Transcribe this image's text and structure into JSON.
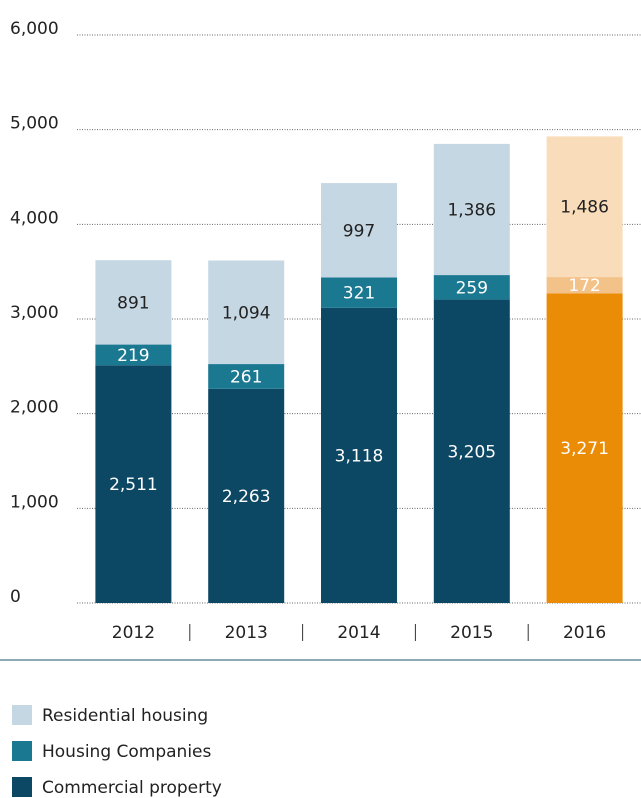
{
  "chart_data": {
    "type": "stacked-bar",
    "categories": [
      "2012",
      "2013",
      "2014",
      "2015",
      "2016"
    ],
    "series": [
      {
        "name": "Commercial property",
        "color": "#0c4764",
        "point_colors": [
          "#0c4764",
          "#0c4764",
          "#0c4764",
          "#0c4764",
          "#eb8c07"
        ],
        "values": [
          2511,
          2263,
          3118,
          3205,
          3271
        ],
        "value_labels": [
          "2,511",
          "2,263",
          "3,118",
          "3,205",
          "3,271"
        ]
      },
      {
        "name": "Housing Companies",
        "color": "#1a7891",
        "point_colors": [
          "#1a7891",
          "#1a7891",
          "#1a7891",
          "#1a7891",
          "#f3c289"
        ],
        "values": [
          219,
          261,
          321,
          259,
          172
        ]
      },
      {
        "name": "Residential housing",
        "color": "#c6d7e4",
        "point_colors": [
          "#c6d7e4",
          "#c6d7e4",
          "#c6d7e4",
          "#c6d7e4",
          "#f9dcb9"
        ],
        "values": [
          891,
          1094,
          997,
          1386,
          1486
        ],
        "value_labels": [
          "891",
          "1,094",
          "997",
          "1,386",
          "1,486"
        ]
      }
    ],
    "ylim": [
      0,
      6000
    ],
    "yticks": [
      0,
      {
        "value": 1000,
        "label": "1,000"
      },
      {
        "value": 2000,
        "label": "2,000"
      },
      {
        "value": 3000,
        "label": "3,000"
      },
      {
        "value": 4000,
        "label": "4,000"
      },
      {
        "value": 5000,
        "label": "5,000"
      },
      {
        "value": 6000,
        "label": "6,000"
      }
    ],
    "grid": true
  }
}
